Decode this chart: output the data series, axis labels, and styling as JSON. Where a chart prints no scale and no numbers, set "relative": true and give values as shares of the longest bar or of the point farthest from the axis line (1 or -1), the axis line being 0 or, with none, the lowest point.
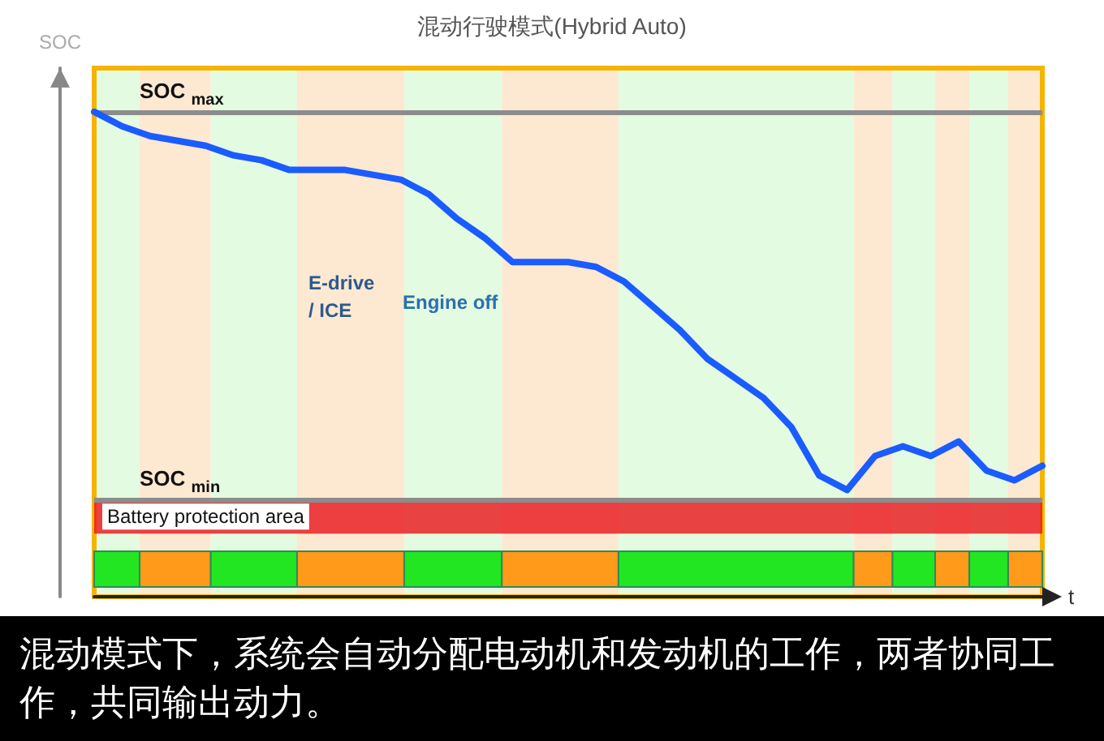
{
  "chart_data": {
    "type": "line",
    "title": "混动行驶模式(Hybrid Auto)",
    "ylabel": "SOC",
    "xlabel": "t",
    "relative": true,
    "grid": false,
    "marker": "none",
    "line_style": "solid",
    "categories": [
      null,
      null,
      null,
      null,
      null,
      null,
      null,
      null,
      null,
      null,
      null,
      null,
      null,
      null,
      null,
      null,
      null,
      null,
      null,
      null,
      null,
      null,
      null,
      null,
      null,
      null,
      null,
      null,
      null,
      null,
      null,
      null,
      null,
      null,
      null
    ],
    "series": [
      {
        "color": "#1a5cff",
        "values": [
          1,
          0.97,
          0.95,
          0.94,
          0.93,
          0.91,
          0.9,
          0.88,
          0.88,
          0.88,
          0.87,
          0.86,
          0.83,
          0.78,
          0.74,
          0.69,
          0.69,
          0.69,
          0.68,
          0.65,
          0.6,
          0.55,
          0.49,
          0.45,
          0.41,
          0.35,
          0.25,
          0.22,
          0.29,
          0.31,
          0.29,
          0.32,
          0.26,
          0.24,
          0.27
        ]
      }
    ],
    "ref_lines": [
      {
        "axis": "y",
        "value": 1,
        "label": "SOC $_{max}$",
        "color": "#8c8c8c"
      },
      {
        "axis": "y",
        "value": 0.2,
        "label": "SOC $_{min}$",
        "color": "#8c8c8c"
      }
    ],
    "bands": [
      {
        "axis": "y",
        "from": 0.13,
        "to": 0.2,
        "label": "Battery protection area",
        "color": "#e8141c"
      }
    ],
    "annotations": [
      "E-drive / ICE",
      "Engine off",
      "混动模式下，系统会自动分配电动机和发动机的工作，两者协同工作，共同输出动力。"
    ]
  }
}
